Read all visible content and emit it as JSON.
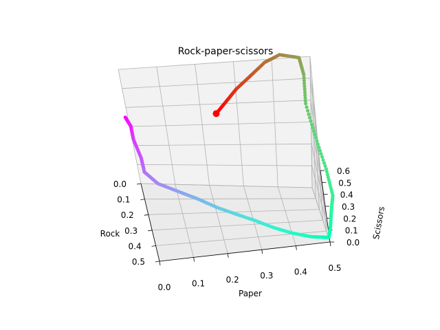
{
  "chart_data": {
    "type": "scatter",
    "projection": "3d",
    "title": "Rock-paper-scissors",
    "axes": {
      "x": {
        "label": "Rock",
        "ticks": [
          "0.0",
          "0.1",
          "0.2",
          "0.3",
          "0.4",
          "0.5"
        ],
        "range": [
          0,
          0.5
        ]
      },
      "y": {
        "label": "Paper",
        "ticks": [
          "0.0",
          "0.1",
          "0.2",
          "0.3",
          "0.4",
          "0.5"
        ],
        "range": [
          0,
          0.5
        ]
      },
      "z": {
        "label": "Scissors",
        "ticks": [
          "0.0",
          "0.1",
          "0.2",
          "0.3",
          "0.4",
          "0.5",
          "0.6"
        ],
        "range": [
          0,
          0.6
        ]
      }
    },
    "grid": true,
    "colormap": "rainbow",
    "series": [
      {
        "points": [
          [
            0.2,
            0.0,
            0.55
          ],
          [
            0.22,
            0.01,
            0.52
          ],
          [
            0.25,
            0.01,
            0.48
          ],
          [
            0.28,
            0.02,
            0.4
          ],
          [
            0.3,
            0.02,
            0.34
          ],
          [
            0.32,
            0.05,
            0.29
          ],
          [
            0.33,
            0.1,
            0.25
          ],
          [
            0.35,
            0.15,
            0.22
          ],
          [
            0.37,
            0.2,
            0.18
          ],
          [
            0.39,
            0.25,
            0.15
          ],
          [
            0.41,
            0.3,
            0.12
          ],
          [
            0.43,
            0.35,
            0.08
          ],
          [
            0.45,
            0.4,
            0.05
          ],
          [
            0.47,
            0.45,
            0.03
          ],
          [
            0.48,
            0.5,
            0.02
          ],
          [
            0.45,
            0.51,
            0.08
          ],
          [
            0.4,
            0.52,
            0.15
          ],
          [
            0.35,
            0.53,
            0.2
          ],
          [
            0.28,
            0.52,
            0.3
          ],
          [
            0.2,
            0.5,
            0.4
          ],
          [
            0.12,
            0.48,
            0.5
          ],
          [
            0.06,
            0.48,
            0.58
          ],
          [
            0.03,
            0.47,
            0.63
          ],
          [
            0.03,
            0.42,
            0.65
          ],
          [
            0.05,
            0.38,
            0.64
          ],
          [
            0.08,
            0.34,
            0.61
          ],
          [
            0.11,
            0.3,
            0.58
          ],
          [
            0.14,
            0.27,
            0.55
          ],
          [
            0.17,
            0.24,
            0.52
          ]
        ]
      }
    ]
  }
}
